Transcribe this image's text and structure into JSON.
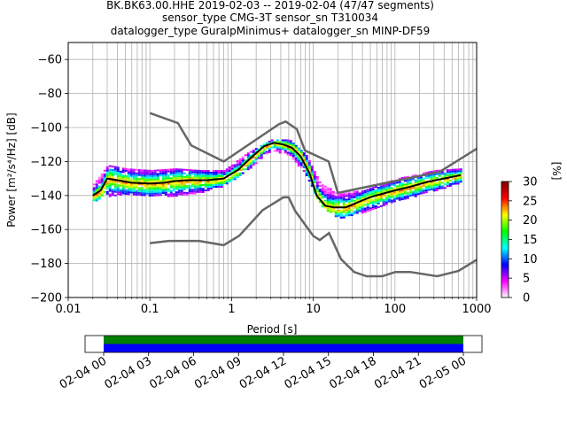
{
  "title": {
    "line1": "BK.BK63.00.HHE   2019-02-03 -- 2019-02-04  (47/47 segments)",
    "line2": "sensor_type CMG-3T sensor_sn T310034",
    "line3": "datalogger_type GuralpMinimus+ datalogger_sn MINP-DF59"
  },
  "chart_data": [
    {
      "type": "heatmap",
      "subtype": "probabilistic power spectral density",
      "xlabel": "Period [s]",
      "ylabel": "Power [m²/s⁴/Hz] [dB]",
      "xscale": "log",
      "xlim": [
        0.01,
        1000
      ],
      "ylim": [
        -200,
        -50
      ],
      "xticks": [
        {
          "v": 0.01,
          "t": "0.01"
        },
        {
          "v": 0.1,
          "t": "0.1"
        },
        {
          "v": 1,
          "t": "1"
        },
        {
          "v": 10,
          "t": "10"
        },
        {
          "v": 100,
          "t": "100"
        },
        {
          "v": 1000,
          "t": "1000"
        }
      ],
      "yticks": [
        -60,
        -80,
        -100,
        -120,
        -140,
        -160,
        -180,
        -200
      ],
      "grid": true,
      "mean_curve": {
        "x": [
          0.02,
          0.025,
          0.03,
          0.04,
          0.06,
          0.1,
          0.15,
          0.2,
          0.3,
          0.5,
          0.8,
          1.2,
          1.8,
          2.5,
          3.3,
          4.3,
          5.5,
          7,
          9,
          11,
          14,
          18,
          25,
          35,
          50,
          70,
          100,
          150,
          250,
          400,
          640
        ],
        "y": [
          -140,
          -137,
          -130,
          -131,
          -132.5,
          -133,
          -132.5,
          -131.5,
          -131,
          -131,
          -130,
          -125,
          -117,
          -111,
          -109,
          -110,
          -112,
          -117,
          -127,
          -140,
          -146,
          -147,
          -147,
          -144,
          -141,
          -139,
          -137,
          -135,
          -132,
          -130,
          -128
        ]
      },
      "new_high_noise_model": {
        "x": [
          0.1,
          0.22,
          0.32,
          0.8,
          3.8,
          4.6,
          6.3,
          7.9,
          15.4,
          20,
          354.8,
          1000
        ],
        "y": [
          -91.5,
          -97.4,
          -110.5,
          -120,
          -98,
          -96.5,
          -101,
          -113.5,
          -120,
          -138.5,
          -126,
          -112.5
        ]
      },
      "new_low_noise_model": {
        "x": [
          0.1,
          0.17,
          0.4,
          0.8,
          1.24,
          2.4,
          4.3,
          5,
          6,
          10,
          12,
          15.6,
          21.9,
          31.6,
          45,
          70,
          101,
          154,
          328,
          600,
          1000
        ],
        "y": [
          -168,
          -166.7,
          -166.7,
          -169.2,
          -163.7,
          -148.6,
          -141.1,
          -141.1,
          -149,
          -163.8,
          -166.2,
          -162.1,
          -177.5,
          -185,
          -187.5,
          -187.5,
          -185,
          -185,
          -187.5,
          -184.4,
          -177.8
        ]
      },
      "probability_spread_db": [
        {
          "x": 0.02,
          "lo": -143,
          "hi": -133
        },
        {
          "x": 0.03,
          "lo": -140,
          "hi": -122
        },
        {
          "x": 0.05,
          "lo": -139,
          "hi": -124
        },
        {
          "x": 0.1,
          "lo": -140,
          "hi": -125
        },
        {
          "x": 0.2,
          "lo": -140,
          "hi": -124
        },
        {
          "x": 0.4,
          "lo": -138,
          "hi": -125
        },
        {
          "x": 0.8,
          "lo": -134,
          "hi": -125
        },
        {
          "x": 1.5,
          "lo": -125,
          "hi": -115
        },
        {
          "x": 3,
          "lo": -113,
          "hi": -107
        },
        {
          "x": 5,
          "lo": -116,
          "hi": -107
        },
        {
          "x": 8,
          "lo": -128,
          "hi": -116
        },
        {
          "x": 12,
          "lo": -146,
          "hi": -133
        },
        {
          "x": 20,
          "lo": -153,
          "hi": -138
        },
        {
          "x": 40,
          "lo": -150,
          "hi": -137
        },
        {
          "x": 100,
          "lo": -143,
          "hi": -130
        },
        {
          "x": 300,
          "lo": -137,
          "hi": -125
        },
        {
          "x": 640,
          "lo": -132,
          "hi": -124
        }
      ]
    },
    {
      "type": "colorbar",
      "label": "[%]",
      "range": [
        0,
        30
      ],
      "ticks": [
        0,
        5,
        10,
        15,
        20,
        25,
        30
      ],
      "colormap": [
        "#ffffff",
        "#ff00ff",
        "#0000ff",
        "#00ffff",
        "#00ff00",
        "#ffff00",
        "#ff0000",
        "#800000"
      ]
    },
    {
      "type": "timeline",
      "xlim": [
        "02-03 21:50",
        "02-05 02:00"
      ],
      "coverage_start": "02-04 00",
      "coverage_end": "02-05 00",
      "tick_labels": [
        "02-04 00",
        "02-04 03",
        "02-04 06",
        "02-04 09",
        "02-04 12",
        "02-04 15",
        "02-04 18",
        "02-04 21",
        "02-05 00"
      ],
      "bars": [
        {
          "color": "#008000"
        },
        {
          "color": "#0000ff"
        }
      ]
    }
  ]
}
